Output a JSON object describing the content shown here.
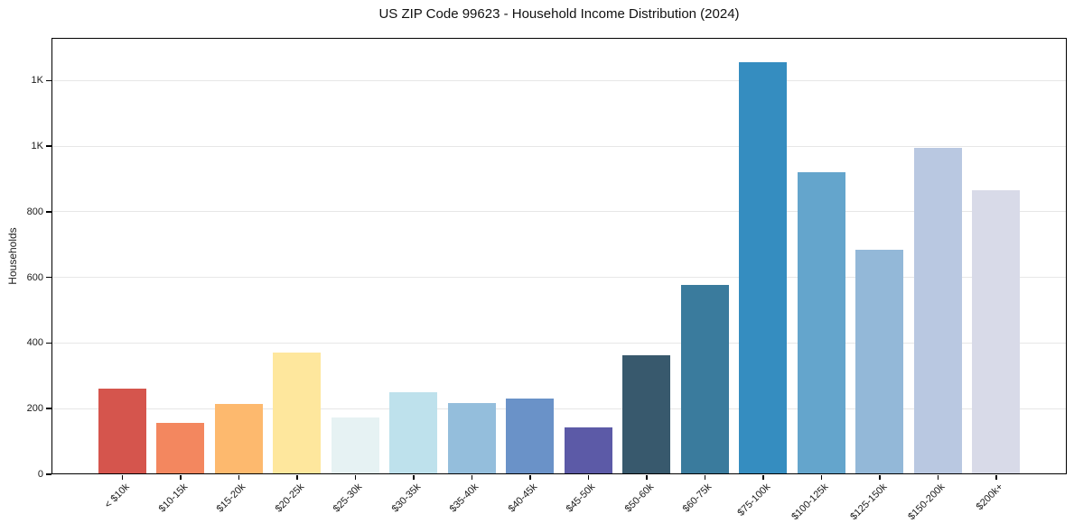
{
  "chart_data": {
    "type": "bar",
    "title": "US ZIP Code 99623 - Household Income Distribution (2024)",
    "xlabel": "",
    "ylabel": "Households",
    "categories": [
      "< $10k",
      "$10-15k",
      "$15-20k",
      "$20-25k",
      "$25-30k",
      "$30-35k",
      "$35-40k",
      "$40-45k",
      "$45-50k",
      "$50-60k",
      "$60-75k",
      "$75-100k",
      "$100-125k",
      "$125-150k",
      "$150-200k",
      "$200k+"
    ],
    "values": [
      262,
      157,
      215,
      371,
      173,
      250,
      218,
      230,
      143,
      363,
      577,
      1256,
      920,
      684,
      994,
      865
    ],
    "bar_colors": [
      "#d5554d",
      "#f3875f",
      "#fdb96e",
      "#fee79d",
      "#e6f2f3",
      "#bee1ec",
      "#94bedc",
      "#6a92c8",
      "#5c5aa7",
      "#38596d",
      "#3a7b9d",
      "#358dc0",
      "#64a5cc",
      "#93b8d8",
      "#b9c8e1",
      "#d8dae8"
    ],
    "ylim": [
      0,
      1330
    ],
    "yticks": {
      "values": [
        0,
        200,
        400,
        600,
        800,
        1000,
        1200
      ],
      "labels": [
        "0",
        "200",
        "400",
        "600",
        "800",
        "1K",
        "1K"
      ]
    },
    "grid": "horizontal",
    "legend": "none",
    "spine_color": "#000000",
    "gridline_color": "#e7e7e7"
  }
}
